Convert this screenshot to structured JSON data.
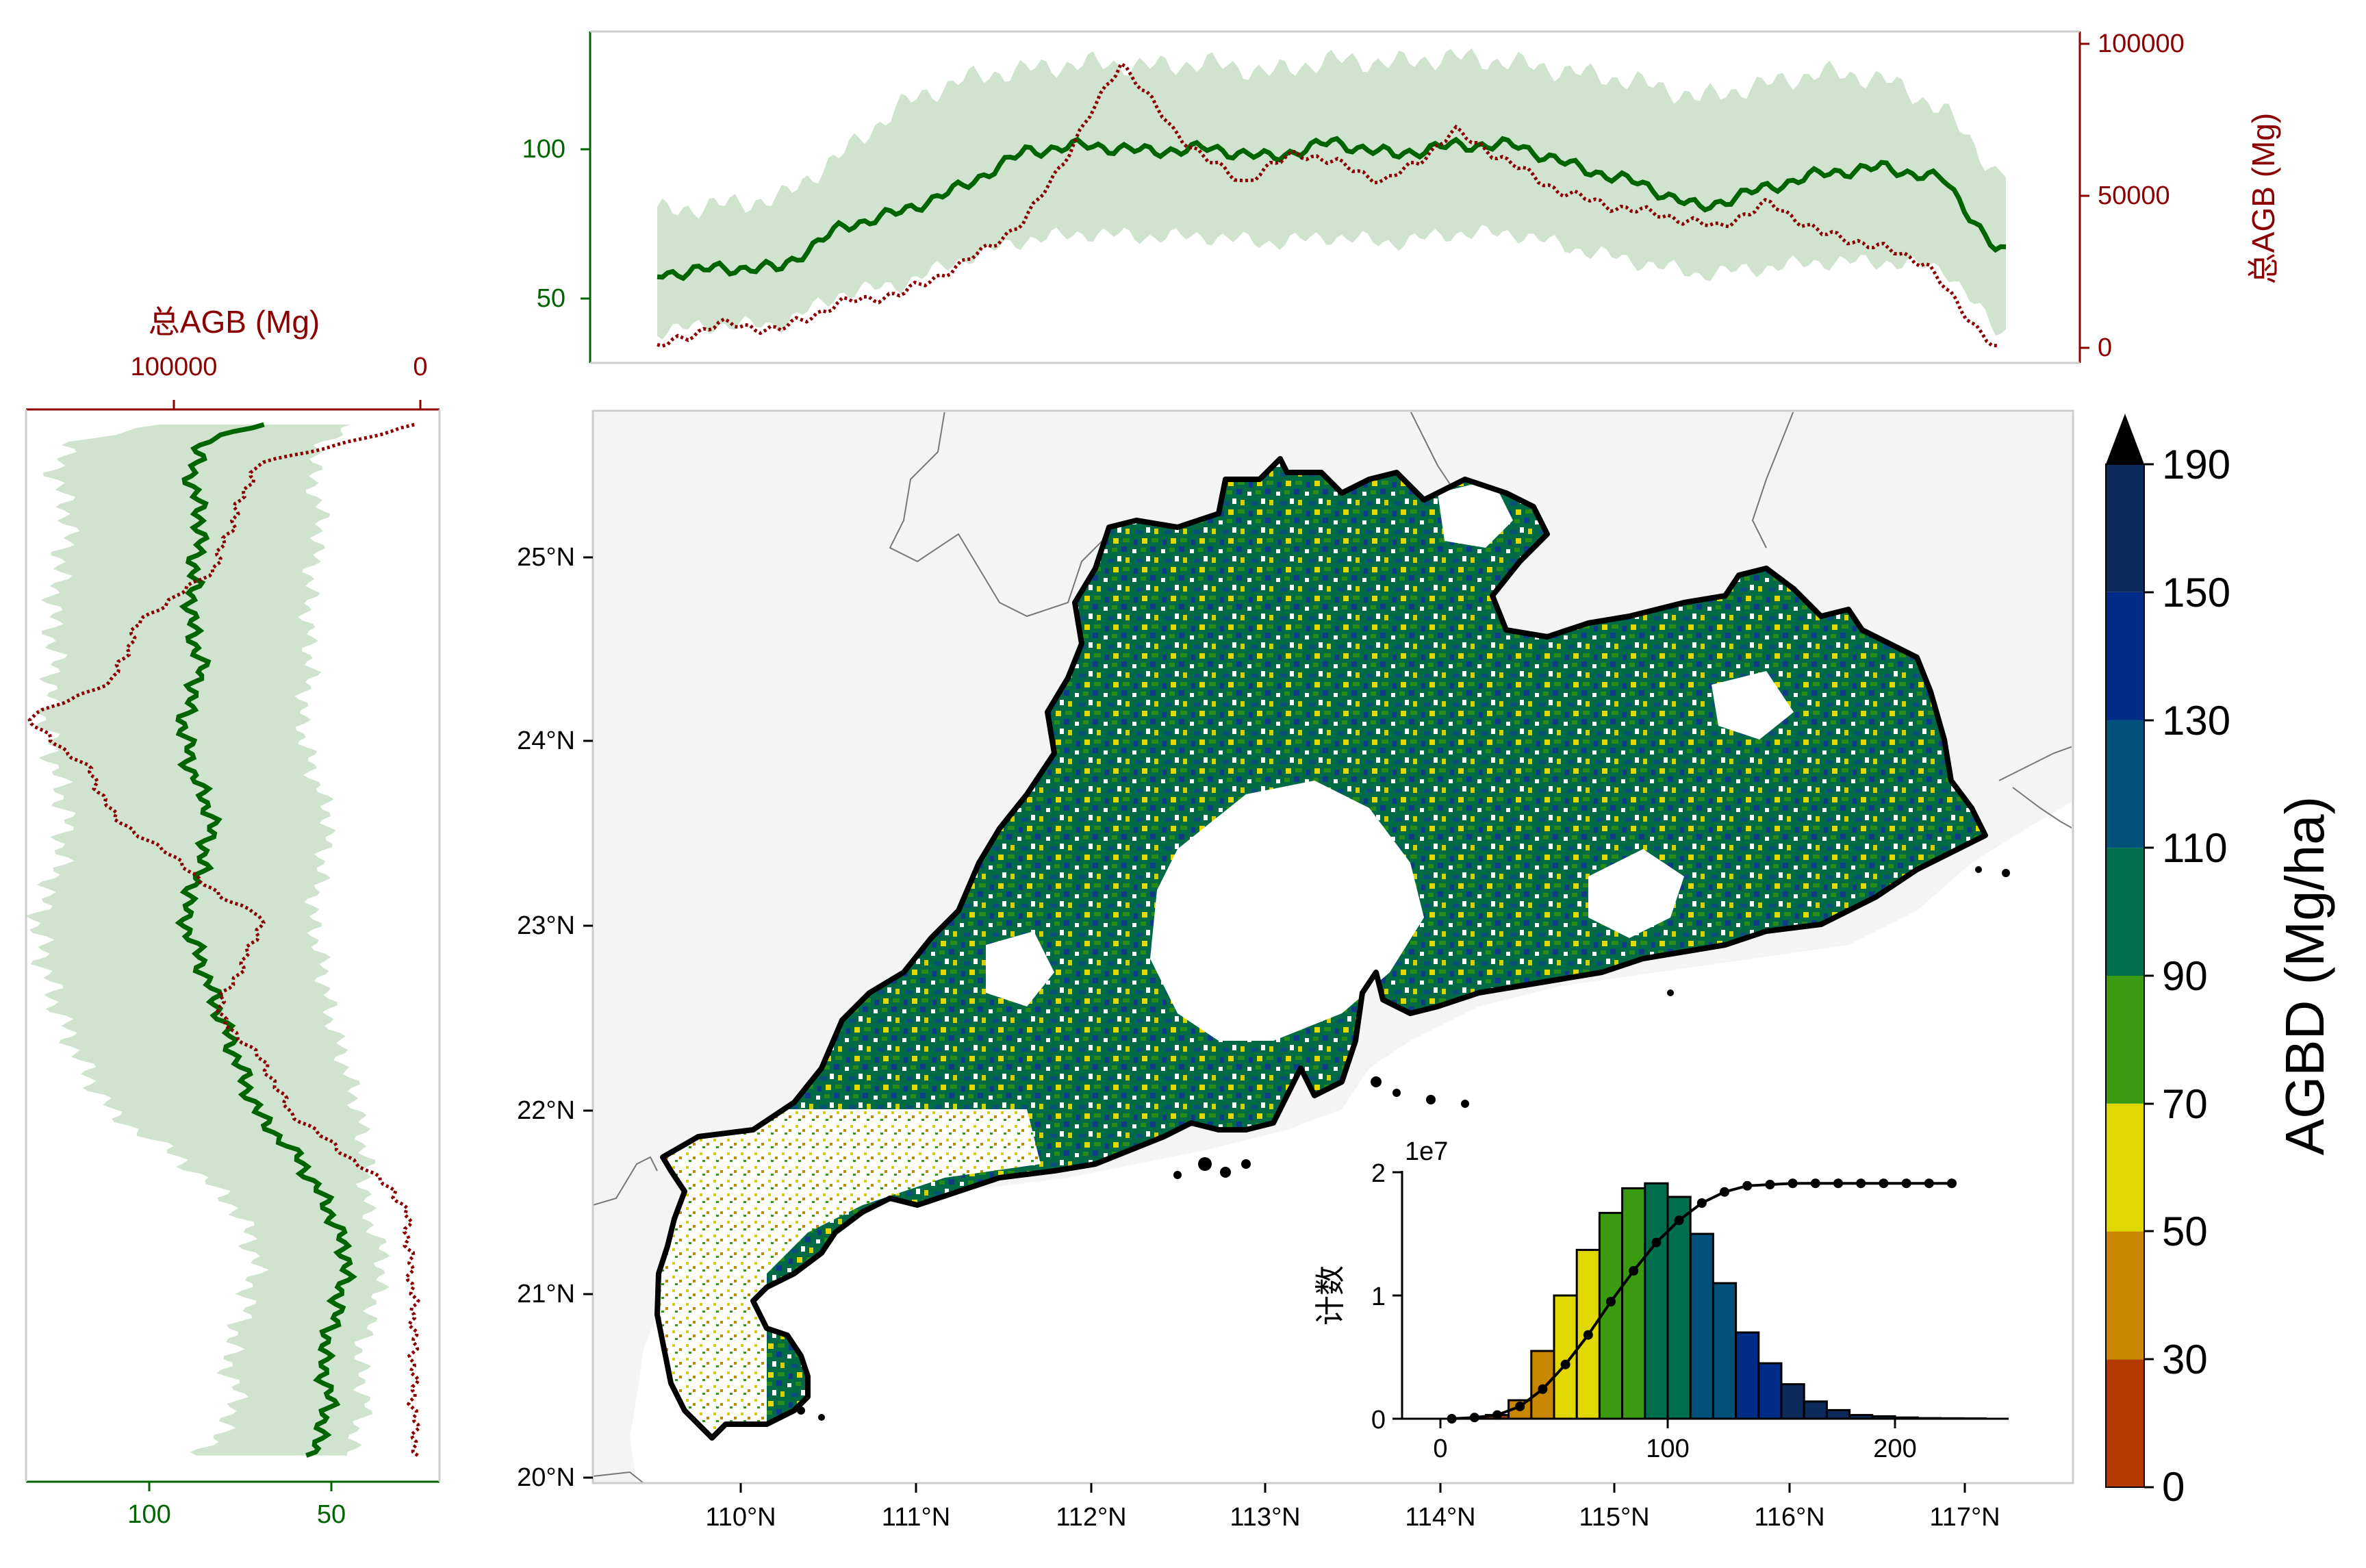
{
  "colors": {
    "green": "#006400",
    "band": "#cfe3cf",
    "red": "#8b0000",
    "land": "#f4f4f4",
    "frame": "#cccccc",
    "boundary": "#000000",
    "neighbor_border": "#777777"
  },
  "map": {
    "lat_ticks": [
      "20°N",
      "21°N",
      "22°N",
      "23°N",
      "24°N",
      "25°N"
    ],
    "lon_ticks": [
      "110°N",
      "111°N",
      "112°N",
      "113°N",
      "114°N",
      "115°N",
      "116°N",
      "117°N"
    ]
  },
  "colorbar": {
    "label": "AGBD (Mg/ha)",
    "ticks": [
      "0",
      "30",
      "50",
      "70",
      "90",
      "110",
      "130",
      "150",
      "190"
    ],
    "colors": [
      "#b33a00",
      "#c98600",
      "#e0d800",
      "#3b9b10",
      "#006e4c",
      "#00507a",
      "#002c88",
      "#0c2a5c"
    ],
    "extend": "max"
  },
  "chart_data": [
    {
      "type": "line",
      "panel": "top",
      "description": "Longitudinal profile: mean AGBD (green, left axis) with spread band and total AGB (red dotted, right axis)",
      "left_axis": {
        "ticks": [
          "50",
          "100"
        ],
        "ylim": [
          30,
          135
        ],
        "color": "#006400"
      },
      "right_axis": {
        "label": "总AGB (Mg)",
        "ticks": [
          "0",
          "50000",
          "100000"
        ],
        "ylim": [
          -5000,
          105000
        ],
        "color": "#8b0000"
      },
      "x_lim": [
        109.65,
        117.35
      ],
      "series": [
        {
          "role": "mean",
          "x": [
            109.65,
            110.0,
            110.35,
            110.7,
            111.05,
            111.4,
            111.75,
            112.1,
            112.45,
            112.8,
            113.15,
            113.5,
            113.85,
            114.2,
            114.55,
            114.9,
            115.25,
            115.6,
            115.95,
            116.3,
            116.65,
            117.0,
            117.3
          ],
          "values": [
            58,
            60,
            60,
            73,
            78,
            86,
            97,
            99,
            97,
            98,
            95,
            100,
            96,
            99,
            99,
            92,
            87,
            79,
            85,
            90,
            92,
            88,
            65
          ]
        },
        {
          "role": "band_upper",
          "x": [
            109.65,
            110.0,
            110.35,
            110.7,
            111.05,
            111.4,
            111.75,
            112.1,
            112.45,
            112.8,
            113.15,
            113.5,
            113.85,
            114.2,
            114.55,
            114.9,
            115.25,
            115.6,
            115.95,
            116.3,
            116.65,
            117.0,
            117.3
          ],
          "values": [
            78,
            80,
            82,
            96,
            112,
            120,
            123,
            125,
            124,
            125,
            122,
            126,
            125,
            127,
            125,
            122,
            119,
            114,
            118,
            122,
            120,
            110,
            90
          ]
        },
        {
          "role": "band_lower",
          "x": [
            109.65,
            110.0,
            110.35,
            110.7,
            111.05,
            111.4,
            111.75,
            112.1,
            112.45,
            112.8,
            113.15,
            113.5,
            113.85,
            114.2,
            114.55,
            114.9,
            115.25,
            115.6,
            115.95,
            116.3,
            116.65,
            117.0,
            117.3
          ],
          "values": [
            40,
            42,
            42,
            52,
            55,
            63,
            69,
            71,
            70,
            70,
            68,
            70,
            68,
            71,
            71,
            66,
            62,
            58,
            60,
            62,
            62,
            60,
            40
          ]
        },
        {
          "role": "total",
          "x": [
            109.65,
            110.0,
            110.35,
            110.7,
            111.05,
            111.4,
            111.75,
            112.0,
            112.3,
            112.6,
            112.8,
            113.0,
            113.3,
            113.6,
            113.8,
            114.0,
            114.2,
            114.5,
            114.8,
            115.1,
            115.4,
            115.7,
            116.0,
            116.3,
            116.6,
            116.9,
            117.1,
            117.3
          ],
          "values": [
            0,
            8000,
            6000,
            15000,
            18000,
            28000,
            42000,
            65000,
            95000,
            72000,
            62000,
            55000,
            65000,
            60000,
            55000,
            62000,
            72000,
            62000,
            52000,
            47000,
            44000,
            40000,
            48000,
            38000,
            34000,
            28000,
            12000,
            0
          ]
        }
      ]
    },
    {
      "type": "line",
      "panel": "left",
      "description": "Latitudinal profile: mean AGBD (green, bottom axis, reversed) with spread band and total AGB (red dotted, top axis, reversed)",
      "bottom_axis": {
        "ticks": [
          "100",
          "50"
        ],
        "xlim": [
          133,
          20
        ],
        "color": "#006400"
      },
      "top_axis": {
        "label": "总AGB (Mg)",
        "ticks": [
          "100000",
          "0"
        ],
        "xlim": [
          152000,
          -8000
        ],
        "color": "#8b0000"
      },
      "y_lim": [
        20.2,
        25.5
      ],
      "series": [
        {
          "role": "mean",
          "y": [
            20.25,
            20.5,
            20.75,
            21.0,
            21.25,
            21.5,
            21.75,
            22.0,
            22.25,
            22.5,
            22.75,
            23.0,
            23.25,
            23.5,
            23.75,
            24.0,
            24.25,
            24.5,
            24.75,
            25.0,
            25.25,
            25.4,
            25.5
          ],
          "values": [
            55,
            50,
            52,
            48,
            45,
            50,
            58,
            70,
            75,
            80,
            85,
            90,
            85,
            82,
            88,
            90,
            85,
            88,
            87,
            85,
            88,
            85,
            70
          ]
        },
        {
          "role": "band_upper",
          "y": [
            20.25,
            20.5,
            20.75,
            21.0,
            21.25,
            21.5,
            21.75,
            22.0,
            22.25,
            22.5,
            22.75,
            23.0,
            23.25,
            23.5,
            23.75,
            24.0,
            24.25,
            24.5,
            24.75,
            25.0,
            25.25,
            25.4,
            25.5
          ],
          "values": [
            85,
            75,
            78,
            73,
            70,
            75,
            90,
            110,
            118,
            124,
            128,
            130,
            124,
            122,
            125,
            128,
            125,
            126,
            124,
            121,
            125,
            122,
            95
          ]
        },
        {
          "role": "band_lower",
          "y": [
            20.25,
            20.5,
            20.75,
            21.0,
            21.25,
            21.5,
            21.75,
            22.0,
            22.25,
            22.5,
            22.75,
            23.0,
            23.25,
            23.5,
            23.75,
            24.0,
            24.25,
            24.5,
            24.75,
            25.0,
            25.25,
            25.4,
            25.5
          ],
          "values": [
            45,
            40,
            42,
            38,
            35,
            40,
            40,
            42,
            46,
            50,
            52,
            55,
            52,
            50,
            55,
            58,
            55,
            56,
            55,
            52,
            55,
            52,
            45
          ]
        },
        {
          "role": "total",
          "y": [
            20.25,
            20.5,
            21.0,
            21.5,
            21.6,
            21.75,
            22.0,
            22.25,
            22.5,
            22.6,
            22.75,
            23.0,
            23.1,
            23.25,
            23.5,
            23.75,
            24.0,
            24.2,
            24.5,
            24.75,
            25.0,
            25.15,
            25.3,
            25.5
          ],
          "values": [
            1000,
            2000,
            2000,
            5000,
            10000,
            25000,
            50000,
            60000,
            78000,
            75000,
            68000,
            60000,
            78000,
            90000,
            118000,
            128000,
            152000,
            118000,
            108000,
            80000,
            72000,
            68000,
            62000,
            0
          ]
        }
      ]
    },
    {
      "type": "bar",
      "panel": "inset",
      "description": "Histogram of AGBD pixel counts with cumulative curve",
      "ylabel": "计数",
      "y_multiplier": "1e7",
      "xticks": [
        "0",
        "100",
        "200"
      ],
      "yticks": [
        "0",
        "1",
        "2"
      ],
      "xlim": [
        -10,
        240
      ],
      "ylim": [
        0,
        2
      ],
      "bin_width": 10,
      "bin_edges_start": [
        20,
        30,
        40,
        50,
        60,
        70,
        80,
        90,
        100,
        110,
        120,
        130,
        140,
        150,
        160,
        170,
        180,
        190,
        200,
        210,
        220,
        230
      ],
      "values": [
        0.03,
        0.15,
        0.55,
        1.0,
        1.37,
        1.67,
        1.87,
        1.91,
        1.8,
        1.5,
        1.1,
        0.7,
        0.45,
        0.28,
        0.14,
        0.07,
        0.03,
        0.02,
        0.01,
        0.005,
        0.004,
        0.003
      ],
      "cumulative": {
        "x": [
          5,
          15,
          25,
          35,
          45,
          55,
          65,
          75,
          85,
          95,
          105,
          115,
          125,
          135,
          145,
          155,
          165,
          175,
          185,
          195,
          205,
          215,
          225
        ],
        "values": [
          0.0,
          0.01,
          0.03,
          0.1,
          0.24,
          0.44,
          0.68,
          0.95,
          1.2,
          1.43,
          1.61,
          1.75,
          1.84,
          1.89,
          1.9,
          1.91,
          1.91,
          1.91,
          1.91,
          1.91,
          1.91,
          1.91,
          1.91
        ]
      }
    }
  ]
}
